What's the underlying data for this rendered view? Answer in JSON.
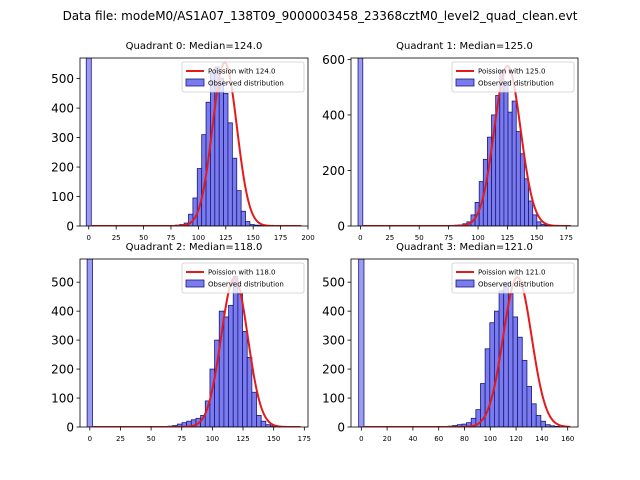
{
  "figure": {
    "suptitle": "Data file: modeM0/AS1A07_138T09_9000003458_23368cztM0_level2_quad_clean.evt",
    "colors": {
      "bar_fill": "#7b7bf0",
      "bar_edge": "#1a1a7a",
      "line": "#e41a1c",
      "spike": "#9b9bf2"
    }
  },
  "chart_data": [
    {
      "type": "bar",
      "title": "Quadrant 0: Median=124.0",
      "median": 124.0,
      "xlim": [
        -8,
        200
      ],
      "ylim": [
        0,
        570
      ],
      "xticks": [
        0,
        25,
        50,
        75,
        100,
        125,
        150,
        175,
        200
      ],
      "yticks": [
        0,
        100,
        200,
        300,
        400,
        500
      ],
      "spike": {
        "x": 0,
        "height": 570
      },
      "bin_start": 75,
      "bin_width": 4,
      "counts": [
        2,
        3,
        5,
        10,
        40,
        95,
        195,
        310,
        420,
        520,
        540,
        500,
        450,
        350,
        230,
        120,
        50,
        15,
        5,
        3,
        2,
        1,
        1,
        1,
        0,
        0,
        0,
        0,
        0,
        0
      ],
      "legend": [
        "Poission with 124.0",
        "Observed distribution"
      ]
    },
    {
      "type": "bar",
      "title": "Quadrant 1: Median=125.0",
      "median": 125.0,
      "xlim": [
        -8,
        185
      ],
      "ylim": [
        0,
        605
      ],
      "xticks": [
        0,
        25,
        50,
        75,
        100,
        125,
        150,
        175
      ],
      "yticks": [
        0,
        200,
        400,
        600
      ],
      "spike": {
        "x": 0,
        "height": 605
      },
      "bin_start": 80,
      "bin_width": 3.5,
      "counts": [
        3,
        4,
        8,
        15,
        40,
        85,
        160,
        240,
        320,
        400,
        470,
        560,
        520,
        410,
        450,
        340,
        260,
        170,
        90,
        40,
        15,
        6,
        3,
        2,
        1,
        1
      ],
      "legend": [
        "Poission with 125.0",
        "Observed distribution"
      ]
    },
    {
      "type": "bar",
      "title": "Quadrant 2: Median=118.0",
      "median": 118.0,
      "xlim": [
        -8,
        178
      ],
      "ylim": [
        0,
        580
      ],
      "xticks": [
        0,
        25,
        50,
        75,
        100,
        125,
        150,
        175
      ],
      "yticks": [
        0,
        100,
        200,
        300,
        400,
        500
      ],
      "spike": {
        "x": 0,
        "height": 580
      },
      "bin_start": 60,
      "bin_width": 3.8,
      "counts": [
        2,
        3,
        5,
        10,
        15,
        20,
        25,
        30,
        40,
        90,
        200,
        300,
        400,
        380,
        420,
        520,
        460,
        330,
        240,
        120,
        40,
        20,
        8,
        4,
        2,
        1
      ],
      "legend": [
        "Poission with 118.0",
        "Observed distribution"
      ]
    },
    {
      "type": "bar",
      "title": "Quadrant 3: Median=121.0",
      "median": 121.0,
      "xlim": [
        -8,
        168
      ],
      "ylim": [
        0,
        580
      ],
      "xticks": [
        0,
        20,
        40,
        60,
        80,
        100,
        120,
        140,
        160
      ],
      "yticks": [
        0,
        100,
        200,
        300,
        400,
        500
      ],
      "spike": {
        "x": 0,
        "height": 580
      },
      "bin_start": 60,
      "bin_width": 3.6,
      "counts": [
        1,
        2,
        3,
        5,
        8,
        10,
        15,
        30,
        60,
        150,
        270,
        360,
        400,
        470,
        500,
        460,
        380,
        310,
        230,
        140,
        80,
        40,
        20,
        8,
        4,
        2
      ],
      "legend": [
        "Poission with 121.0",
        "Observed distribution"
      ]
    }
  ]
}
